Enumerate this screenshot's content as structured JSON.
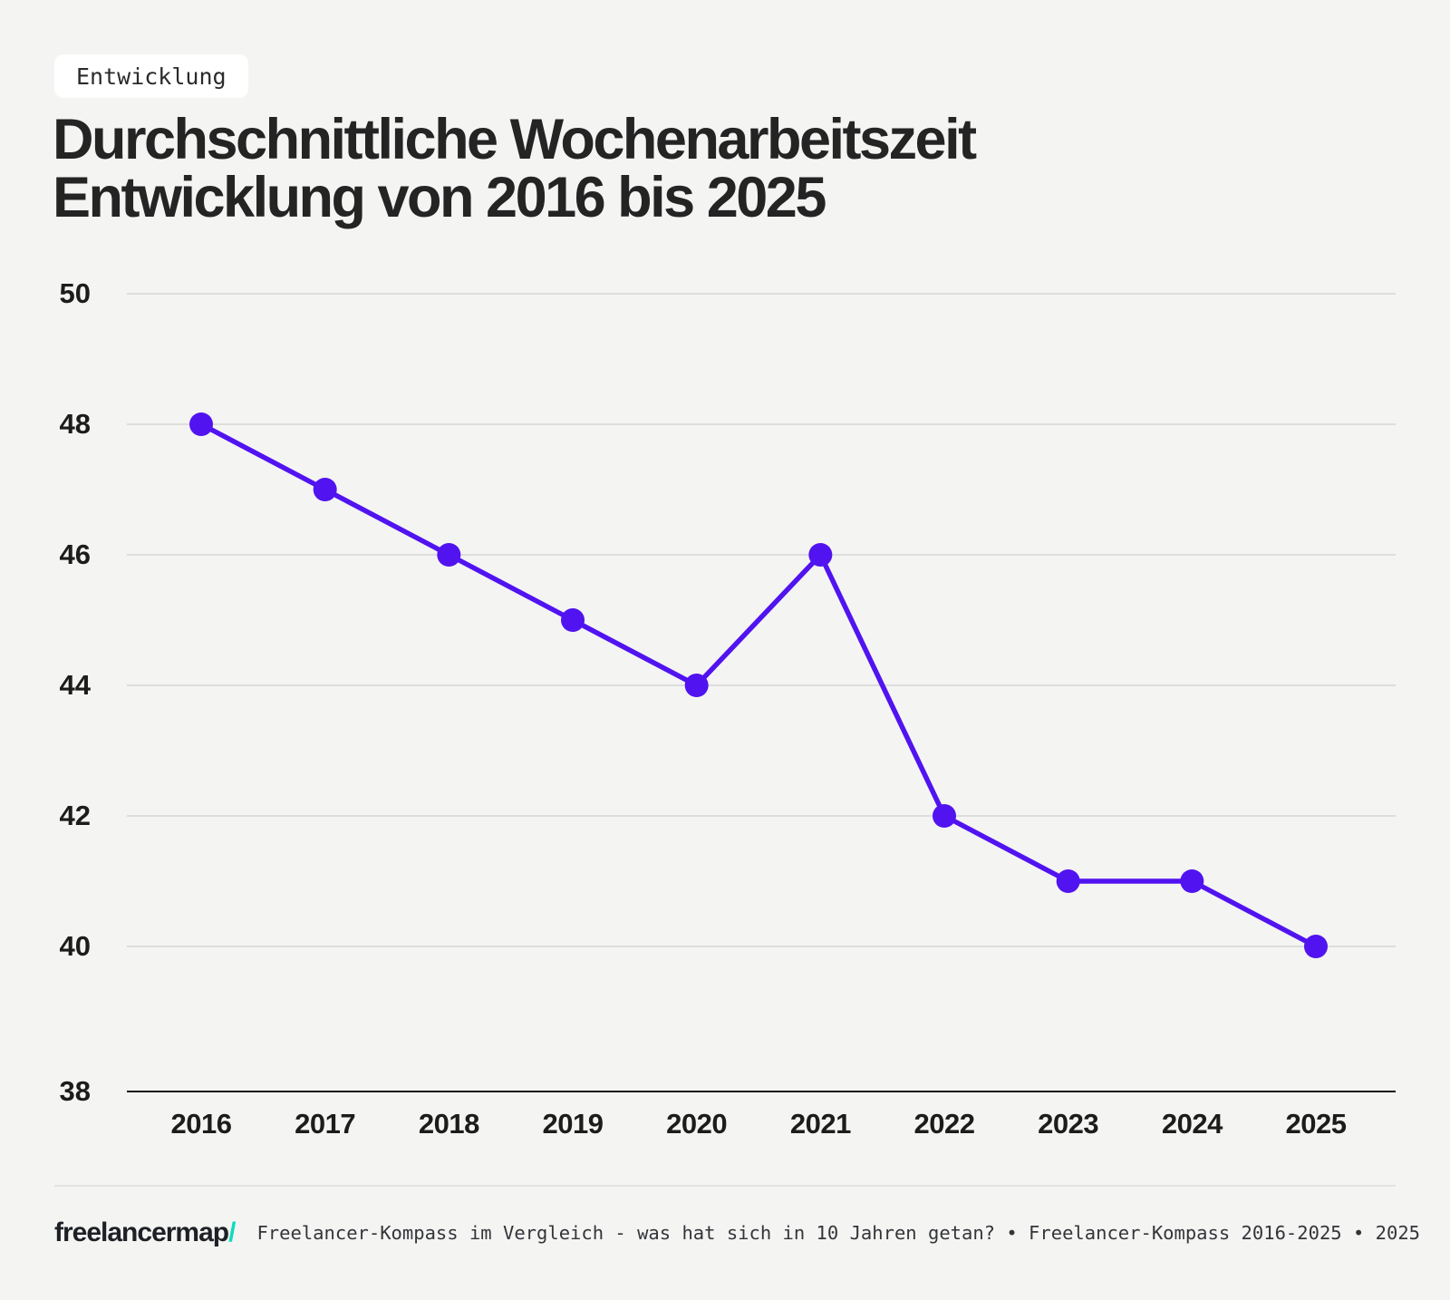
{
  "badge": {
    "label": "Entwicklung"
  },
  "title": {
    "lines": [
      "Durchschnittliche Wochenarbeitszeit",
      "Entwicklung von 2016 bis 2025"
    ]
  },
  "chart_data": {
    "type": "line",
    "title": "Durchschnittliche Wochenarbeitszeit Entwicklung von 2016 bis 2025",
    "categories": [
      "2016",
      "2017",
      "2018",
      "2019",
      "2020",
      "2021",
      "2022",
      "2023",
      "2024",
      "2025"
    ],
    "series": [
      {
        "name": "Durchschnittliche Wochenarbeitszeit (Stunden)",
        "values": [
          48,
          47,
          46,
          45,
          44,
          46,
          42,
          41,
          41,
          40
        ]
      }
    ],
    "xlabel": "",
    "ylabel": "",
    "ylim": [
      38,
      50
    ],
    "yticks": [
      50,
      48,
      46,
      44,
      42,
      40,
      38
    ],
    "grid": true,
    "legend_position": "none",
    "line_color": "#5113f0",
    "marker": "circle"
  },
  "footer": {
    "logo_text": "freelancermap",
    "logo_slash": "/",
    "caption": "Freelancer-Kompass im Vergleich - was hat sich in 10 Jahren getan? • Freelancer-Kompass 2016-2025 • 2025"
  },
  "colors": {
    "background": "#f4f4f2",
    "accent_purple": "#5113f0",
    "accent_teal": "#0cdcc0",
    "gridline": "#dddddd",
    "axis_line": "#141414",
    "text": "#242424"
  }
}
